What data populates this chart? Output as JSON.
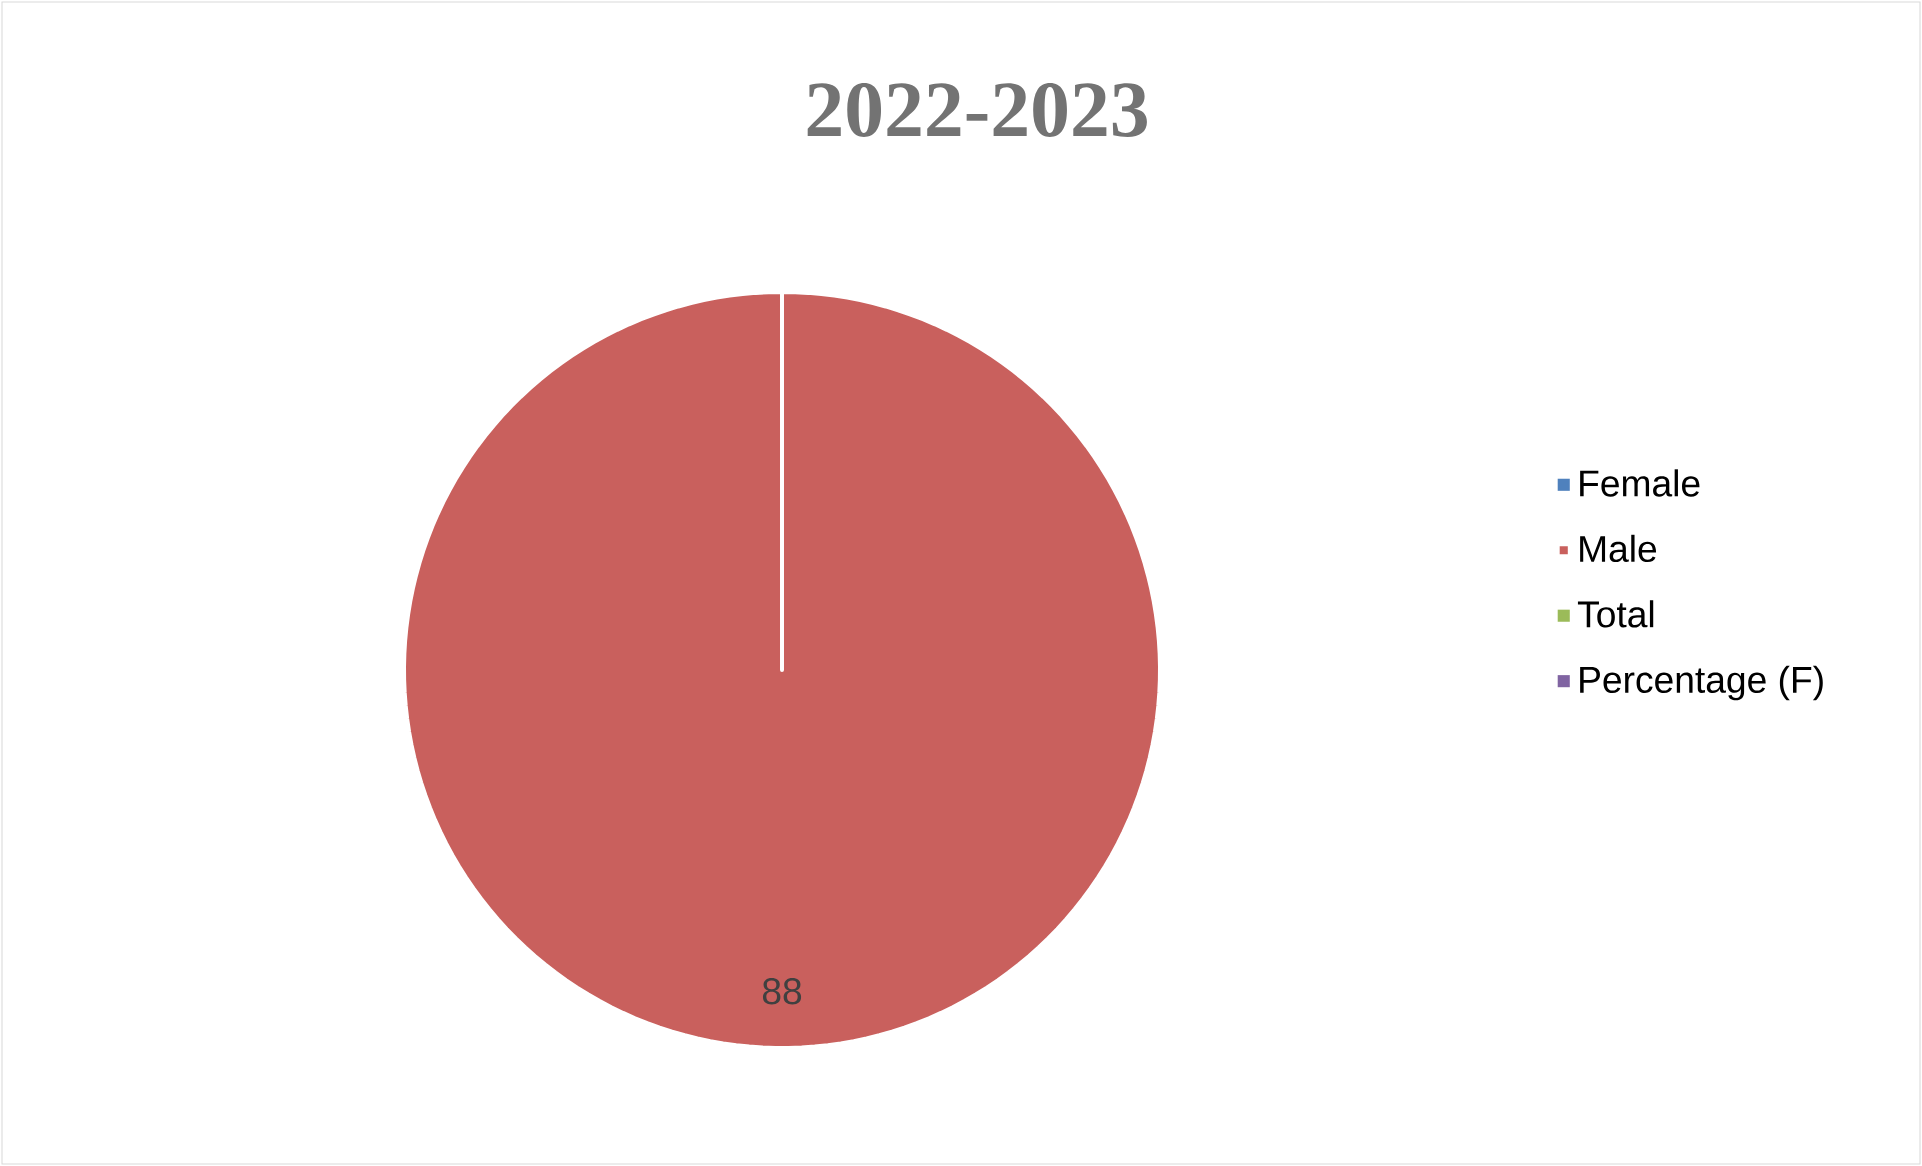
{
  "chart_data": {
    "type": "pie",
    "title": "2022-2023",
    "categories": [
      "Female",
      "Male",
      "Total",
      "Percentage (F)"
    ],
    "values": [
      0,
      88,
      0,
      0
    ],
    "colors": [
      "#4f81bd",
      "#c9605d",
      "#9bbb59",
      "#8064a2"
    ],
    "value_labels": [
      null,
      "88",
      null,
      null
    ],
    "legend": "right"
  }
}
